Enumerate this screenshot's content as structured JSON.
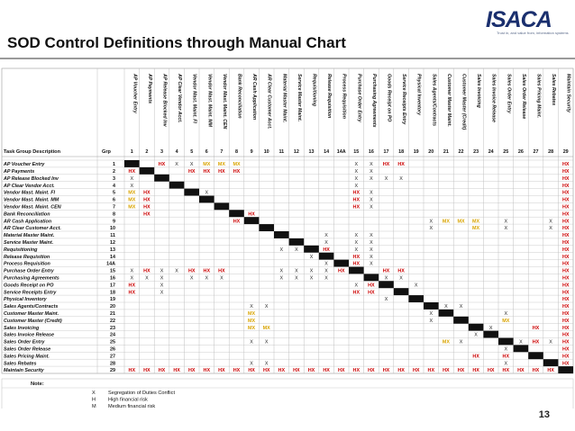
{
  "header": {
    "title": "SOD Control Definitions through Manual Chart",
    "logo_text": "ISACA",
    "logo_tagline": "Trust in, and value from, information systems"
  },
  "table": {
    "corner_label": "Task Group Description",
    "grp_label": "Grp",
    "column_headers": [
      "AP Voucher Entry",
      "AP Payments",
      "AP Release Blocked Inv",
      "AP Clear Vendor Acct.",
      "Vendor Mast. Maint. FI",
      "Vendor Mast. Maint. MM",
      "Vendor Mast. Maint. CEN",
      "Bank Reconciliation",
      "AR Cash Application",
      "AR Clear Customer Acct.",
      "Material Master Maint.",
      "Service Master Maint.",
      "Requisitioning",
      "Release Requisition",
      "Process Requisition",
      "Purchase Order Entry",
      "Purchasing Agreements",
      "Goods Receipt on PO",
      "Service Receipts Entry",
      "Physical Inventory",
      "Sales Agents/Contracts",
      "Customer Master Maint.",
      "Customer Master (Credit)",
      "Sales Invoicing",
      "Sales Invoice Release",
      "Sales Order Entry",
      "Sales Order Release",
      "Sales Pricing Maint.",
      "Sales Rebates",
      "Maintain Security"
    ],
    "column_numbers": [
      "1",
      "2",
      "3",
      "4",
      "5",
      "6",
      "7",
      "8",
      "9",
      "10",
      "11",
      "12",
      "13",
      "14",
      "14A",
      "15",
      "16",
      "17",
      "18",
      "19",
      "20",
      "21",
      "22",
      "23",
      "24",
      "25",
      "26",
      "27",
      "28",
      "29"
    ],
    "rows": [
      {
        "desc": "AP Voucher Entry",
        "grp": "1",
        "cells": [
          "B",
          "",
          "HX",
          "X",
          "X",
          "MX",
          "MX",
          "MX",
          "",
          "",
          "",
          "",
          "",
          "",
          "",
          "X",
          "X",
          "HX",
          "HX",
          "",
          "",
          "",
          "",
          "",
          "",
          "",
          "",
          "",
          "",
          "HX"
        ]
      },
      {
        "desc": "AP Payments",
        "grp": "2",
        "cells": [
          "HX",
          "B",
          "",
          "",
          "HX",
          "HX",
          "HX",
          "HX",
          "",
          "",
          "",
          "",
          "",
          "",
          "",
          "X",
          "X",
          "",
          "",
          "",
          "",
          "",
          "",
          "",
          "",
          "",
          "",
          "",
          "",
          "HX"
        ]
      },
      {
        "desc": "AP Release Blocked Inv",
        "grp": "3",
        "cells": [
          "X",
          "",
          "B",
          "",
          "",
          "",
          "",
          "",
          "",
          "",
          "",
          "",
          "",
          "",
          "",
          "X",
          "X",
          "X",
          "X",
          "",
          "",
          "",
          "",
          "",
          "",
          "",
          "",
          "",
          "",
          "HX"
        ]
      },
      {
        "desc": "AP Clear Vendor Acct.",
        "grp": "4",
        "cells": [
          "X",
          "",
          "",
          "B",
          "",
          "",
          "",
          "",
          "",
          "",
          "",
          "",
          "",
          "",
          "",
          "X",
          "",
          "",
          "",
          "",
          "",
          "",
          "",
          "",
          "",
          "",
          "",
          "",
          "",
          "HX"
        ]
      },
      {
        "desc": "Vendor Mast. Maint. FI",
        "grp": "5",
        "cells": [
          "MX",
          "HX",
          "",
          "",
          "B",
          "X",
          "",
          "",
          "",
          "",
          "",
          "",
          "",
          "",
          "",
          "HX",
          "X",
          "",
          "",
          "",
          "",
          "",
          "",
          "",
          "",
          "",
          "",
          "",
          "",
          "HX"
        ]
      },
      {
        "desc": "Vendor Mast. Maint. MM",
        "grp": "6",
        "cells": [
          "MX",
          "HX",
          "",
          "",
          "",
          "B",
          "",
          "",
          "",
          "",
          "",
          "",
          "",
          "",
          "",
          "HX",
          "X",
          "",
          "",
          "",
          "",
          "",
          "",
          "",
          "",
          "",
          "",
          "",
          "",
          "HX"
        ]
      },
      {
        "desc": "Vendor Mast. Maint. CEN",
        "grp": "7",
        "cells": [
          "MX",
          "HX",
          "",
          "",
          "",
          "",
          "B",
          "",
          "",
          "",
          "",
          "",
          "",
          "",
          "",
          "HX",
          "X",
          "",
          "",
          "",
          "",
          "",
          "",
          "",
          "",
          "",
          "",
          "",
          "",
          "HX"
        ]
      },
      {
        "desc": "Bank Reconciliation",
        "grp": "8",
        "cells": [
          "",
          "HX",
          "",
          "",
          "",
          "",
          "",
          "B",
          "HX",
          "",
          "",
          "",
          "",
          "",
          "",
          "",
          "",
          "",
          "",
          "",
          "",
          "",
          "",
          "",
          "",
          "",
          "",
          "",
          "",
          "HX"
        ]
      },
      {
        "desc": "AR Cash Application",
        "grp": "9",
        "cells": [
          "",
          "",
          "",
          "",
          "",
          "",
          "",
          "HX",
          "B",
          "",
          "",
          "",
          "",
          "",
          "",
          "",
          "",
          "",
          "",
          "",
          "X",
          "MX",
          "MX",
          "MX",
          "",
          "X",
          "",
          "",
          "X",
          "HX"
        ]
      },
      {
        "desc": "AR Clear Customer Acct.",
        "grp": "10",
        "cells": [
          "",
          "",
          "",
          "",
          "",
          "",
          "",
          "",
          "",
          "B",
          "",
          "",
          "",
          "",
          "",
          "",
          "",
          "",
          "",
          "",
          "X",
          "",
          "",
          "MX",
          "",
          "X",
          "",
          "",
          "X",
          "HX"
        ]
      },
      {
        "desc": "Material Master Maint.",
        "grp": "11",
        "cells": [
          "",
          "",
          "",
          "",
          "",
          "",
          "",
          "",
          "",
          "",
          "B",
          "",
          "",
          "X",
          "",
          "X",
          "X",
          "",
          "",
          "",
          "",
          "",
          "",
          "",
          "",
          "",
          "",
          "",
          "",
          "HX"
        ]
      },
      {
        "desc": "Service Master Maint.",
        "grp": "12",
        "cells": [
          "",
          "",
          "",
          "",
          "",
          "",
          "",
          "",
          "",
          "",
          "",
          "B",
          "",
          "X",
          "",
          "X",
          "X",
          "",
          "",
          "",
          "",
          "",
          "",
          "",
          "",
          "",
          "",
          "",
          "",
          "HX"
        ]
      },
      {
        "desc": "Requisitioning",
        "grp": "13",
        "cells": [
          "",
          "",
          "",
          "",
          "",
          "",
          "",
          "",
          "",
          "",
          "X",
          "X",
          "B",
          "HX",
          "",
          "X",
          "X",
          "",
          "",
          "",
          "",
          "",
          "",
          "",
          "",
          "",
          "",
          "",
          "",
          "HX"
        ]
      },
      {
        "desc": "Release Requisition",
        "grp": "14",
        "cells": [
          "",
          "",
          "",
          "",
          "",
          "",
          "",
          "",
          "",
          "",
          "",
          "",
          "X",
          "B",
          "",
          "HX",
          "X",
          "",
          "",
          "",
          "",
          "",
          "",
          "",
          "",
          "",
          "",
          "",
          "",
          "HX"
        ]
      },
      {
        "desc": "Process Requisition",
        "grp": "14A",
        "cells": [
          "",
          "",
          "",
          "",
          "",
          "",
          "",
          "",
          "",
          "",
          "",
          "",
          "",
          "X",
          "B",
          "HX",
          "X",
          "",
          "",
          "",
          "",
          "",
          "",
          "",
          "",
          "",
          "",
          "",
          "",
          "HX"
        ]
      },
      {
        "desc": "Purchase Order Entry",
        "grp": "15",
        "cells": [
          "X",
          "HX",
          "X",
          "X",
          "HX",
          "HX",
          "HX",
          "",
          "",
          "",
          "X",
          "X",
          "X",
          "X",
          "HX",
          "B",
          "",
          "HX",
          "HX",
          "",
          "",
          "",
          "",
          "",
          "",
          "",
          "",
          "",
          "",
          "HX"
        ]
      },
      {
        "desc": "Purchasing Agreements",
        "grp": "16",
        "cells": [
          "X",
          "X",
          "X",
          "",
          "X",
          "X",
          "X",
          "",
          "",
          "",
          "X",
          "X",
          "X",
          "X",
          "",
          "",
          "B",
          "X",
          "X",
          "",
          "",
          "",
          "",
          "",
          "",
          "",
          "",
          "",
          "",
          "HX"
        ]
      },
      {
        "desc": "Goods Receipt on PO",
        "grp": "17",
        "cells": [
          "HX",
          "",
          "X",
          "",
          "",
          "",
          "",
          "",
          "",
          "",
          "",
          "",
          "",
          "",
          "",
          "X",
          "HX",
          "B",
          "",
          "X",
          "",
          "",
          "",
          "",
          "",
          "",
          "",
          "",
          "",
          "HX"
        ]
      },
      {
        "desc": "Service Receipts Entry",
        "grp": "18",
        "cells": [
          "HX",
          "",
          "X",
          "",
          "",
          "",
          "",
          "",
          "",
          "",
          "",
          "",
          "",
          "",
          "",
          "HX",
          "HX",
          "",
          "B",
          "",
          "",
          "",
          "",
          "",
          "",
          "",
          "",
          "",
          "",
          "HX"
        ]
      },
      {
        "desc": "Physical Inventory",
        "grp": "19",
        "cells": [
          "",
          "",
          "",
          "",
          "",
          "",
          "",
          "",
          "",
          "",
          "",
          "",
          "",
          "",
          "",
          "",
          "",
          "X",
          "",
          "B",
          "",
          "",
          "",
          "",
          "",
          "",
          "",
          "",
          "",
          "HX"
        ]
      },
      {
        "desc": "Sales Agents/Contracts",
        "grp": "20",
        "cells": [
          "",
          "",
          "",
          "",
          "",
          "",
          "",
          "",
          "X",
          "X",
          "",
          "",
          "",
          "",
          "",
          "",
          "",
          "",
          "",
          "",
          "B",
          "X",
          "X",
          "",
          "",
          "",
          "",
          "",
          "",
          "HX"
        ]
      },
      {
        "desc": "Customer Master Maint.",
        "grp": "21",
        "cells": [
          "",
          "",
          "",
          "",
          "",
          "",
          "",
          "",
          "MX",
          "",
          "",
          "",
          "",
          "",
          "",
          "",
          "",
          "",
          "",
          "",
          "X",
          "B",
          "",
          "",
          "",
          "X",
          "",
          "",
          "",
          "HX"
        ]
      },
      {
        "desc": "Customer Master (Credit)",
        "grp": "22",
        "cells": [
          "",
          "",
          "",
          "",
          "",
          "",
          "",
          "",
          "MX",
          "",
          "",
          "",
          "",
          "",
          "",
          "",
          "",
          "",
          "",
          "",
          "X",
          "",
          "B",
          "",
          "",
          "MX",
          "",
          "",
          "",
          "HX"
        ]
      },
      {
        "desc": "Sales Invoicing",
        "grp": "23",
        "cells": [
          "",
          "",
          "",
          "",
          "",
          "",
          "",
          "",
          "MX",
          "MX",
          "",
          "",
          "",
          "",
          "",
          "",
          "",
          "",
          "",
          "",
          "",
          "",
          "",
          "B",
          "X",
          "",
          "",
          "HX",
          "",
          "HX"
        ]
      },
      {
        "desc": "Sales Invoice Release",
        "grp": "24",
        "cells": [
          "",
          "",
          "",
          "",
          "",
          "",
          "",
          "",
          "",
          "",
          "",
          "",
          "",
          "",
          "",
          "",
          "",
          "",
          "",
          "",
          "",
          "",
          "",
          "X",
          "B",
          "",
          "",
          "",
          "",
          "HX"
        ]
      },
      {
        "desc": "Sales Order Entry",
        "grp": "25",
        "cells": [
          "",
          "",
          "",
          "",
          "",
          "",
          "",
          "",
          "X",
          "X",
          "",
          "",
          "",
          "",
          "",
          "",
          "",
          "",
          "",
          "",
          "",
          "MX",
          "X",
          "",
          "",
          "B",
          "X",
          "HX",
          "X",
          "HX"
        ]
      },
      {
        "desc": "Sales Order Release",
        "grp": "26",
        "cells": [
          "",
          "",
          "",
          "",
          "",
          "",
          "",
          "",
          "",
          "",
          "",
          "",
          "",
          "",
          "",
          "",
          "",
          "",
          "",
          "",
          "",
          "",
          "",
          "",
          "",
          "X",
          "B",
          "",
          "",
          "HX"
        ]
      },
      {
        "desc": "Sales Pricing Maint.",
        "grp": "27",
        "cells": [
          "",
          "",
          "",
          "",
          "",
          "",
          "",
          "",
          "",
          "",
          "",
          "",
          "",
          "",
          "",
          "",
          "",
          "",
          "",
          "",
          "",
          "",
          "",
          "HX",
          "",
          "HX",
          "",
          "B",
          "",
          "HX"
        ]
      },
      {
        "desc": "Sales Rebates",
        "grp": "28",
        "cells": [
          "",
          "",
          "",
          "",
          "",
          "",
          "",
          "",
          "X",
          "X",
          "",
          "",
          "",
          "",
          "",
          "",
          "",
          "",
          "",
          "",
          "",
          "",
          "",
          "",
          "",
          "X",
          "",
          "",
          "B",
          "HX"
        ]
      },
      {
        "desc": "Maintain Security",
        "grp": "29",
        "cells": [
          "HX",
          "HX",
          "HX",
          "HX",
          "HX",
          "HX",
          "HX",
          "HX",
          "HX",
          "HX",
          "HX",
          "HX",
          "HX",
          "HX",
          "HX",
          "HX",
          "HX",
          "HX",
          "HX",
          "HX",
          "HX",
          "HX",
          "HX",
          "HX",
          "HX",
          "HX",
          "HX",
          "HX",
          "HX",
          "B"
        ]
      }
    ]
  },
  "legend": {
    "title": "Note:",
    "items": [
      {
        "code": "X",
        "text": "Segregation of Duties Conflict"
      },
      {
        "code": "H",
        "text": "High financial risk"
      },
      {
        "code": "M",
        "text": "Medium financial risk"
      }
    ]
  },
  "colors": {
    "high": "#cc0000",
    "medium": "#d9a400",
    "conflict": "#222222",
    "diagonal": "#111111",
    "grid": "#bfbfbf"
  },
  "page_number": "13"
}
